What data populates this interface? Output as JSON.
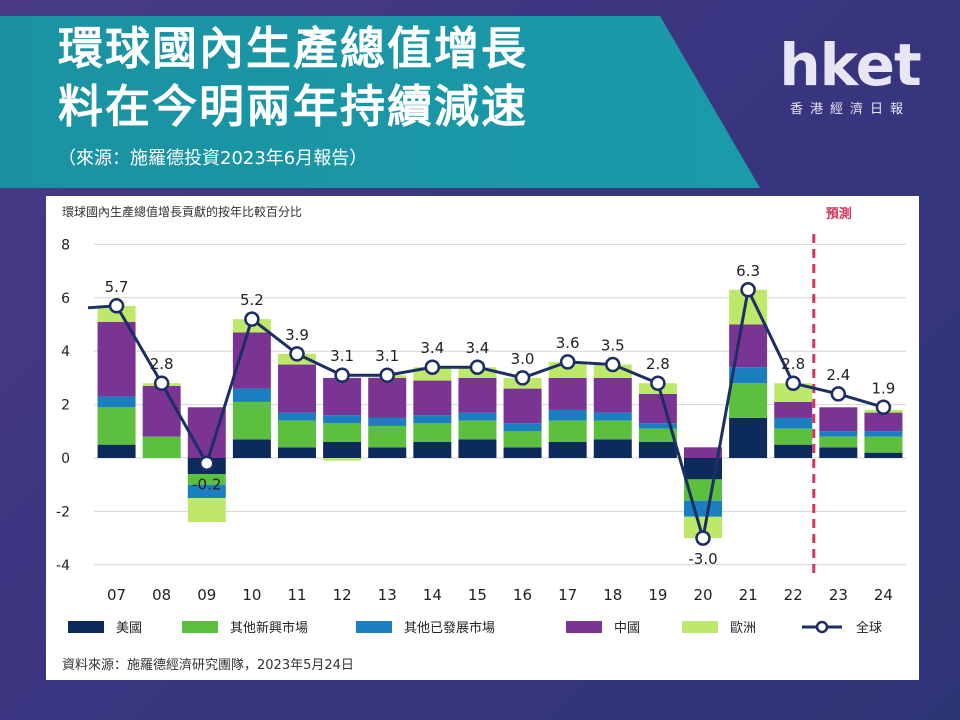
{
  "header": {
    "title_line1": "環球國內生產總值增長",
    "title_line2": "料在今明兩年持續減速",
    "source": "（來源：施羅德投資2023年6月報告）"
  },
  "logo": {
    "main": "hket",
    "sub": "香港經濟日報"
  },
  "footnote": "資料來源：施羅德經濟研究團隊，2023年5月24日",
  "chart_data": {
    "type": "bar",
    "stacked": true,
    "title": "環球國內生產總值增長貢獻的按年比較百分比",
    "forecast_label": "預測",
    "forecast_from": "23",
    "categories": [
      "07",
      "08",
      "09",
      "10",
      "11",
      "12",
      "13",
      "14",
      "15",
      "16",
      "17",
      "18",
      "19",
      "20",
      "21",
      "22",
      "23",
      "24"
    ],
    "ylim": [
      -4,
      8
    ],
    "yticks": [
      -4,
      -2,
      0,
      2,
      4,
      6,
      8
    ],
    "grid": "horizontal",
    "legend_position": "bottom",
    "series": [
      {
        "name": "美國",
        "color": "#0d2a5c",
        "values": [
          0.5,
          0.0,
          -0.6,
          0.7,
          0.4,
          0.6,
          0.4,
          0.6,
          0.7,
          0.4,
          0.6,
          0.7,
          0.6,
          -0.8,
          1.5,
          0.5,
          0.4,
          0.2
        ]
      },
      {
        "name": "其他新興市場",
        "color": "#5cbf3e",
        "values": [
          1.4,
          0.8,
          -0.4,
          1.4,
          1.0,
          0.7,
          0.8,
          0.7,
          0.7,
          0.6,
          0.8,
          0.7,
          0.5,
          -0.8,
          1.3,
          0.6,
          0.4,
          0.6
        ]
      },
      {
        "name": "其他已發展市場",
        "color": "#1a7fc1",
        "values": [
          0.4,
          0.0,
          -0.5,
          0.5,
          0.3,
          0.3,
          0.3,
          0.3,
          0.3,
          0.3,
          0.4,
          0.3,
          0.2,
          -0.6,
          0.6,
          0.4,
          0.2,
          0.2
        ]
      },
      {
        "name": "中國",
        "color": "#7a3594",
        "values": [
          2.8,
          1.9,
          1.9,
          2.1,
          1.8,
          1.4,
          1.5,
          1.3,
          1.3,
          1.3,
          1.2,
          1.3,
          1.1,
          0.4,
          1.6,
          0.6,
          0.9,
          0.7
        ]
      },
      {
        "name": "歐洲",
        "color": "#bde86a",
        "values": [
          0.6,
          0.1,
          -0.9,
          0.5,
          0.4,
          -0.1,
          0.1,
          0.5,
          0.4,
          0.4,
          0.6,
          0.5,
          0.4,
          -0.8,
          1.3,
          0.7,
          0.0,
          0.1
        ]
      }
    ],
    "line": {
      "name": "全球",
      "color": "#1c2e63",
      "values": [
        5.7,
        2.8,
        -0.2,
        5.2,
        3.9,
        3.1,
        3.1,
        3.4,
        3.4,
        3.0,
        3.6,
        3.5,
        2.8,
        -3.0,
        6.3,
        2.8,
        2.4,
        1.9
      ],
      "labels": [
        "5.7",
        "2.8",
        "-0.2",
        "5.2",
        "3.9",
        "3.1",
        "3.1",
        "3.4",
        "3.4",
        "3.0",
        "3.6",
        "3.5",
        "2.8",
        "-3.0",
        "6.3",
        "2.8",
        "2.4",
        "1.9"
      ]
    }
  }
}
